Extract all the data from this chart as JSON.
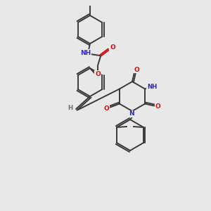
{
  "background_color": "#e8e8e8",
  "bond_color": "#3a3a3a",
  "atom_colors": {
    "N": "#2828cc",
    "O": "#cc1111",
    "H": "#707070",
    "C": "#3a3a3a"
  },
  "figsize": [
    3.0,
    3.0
  ],
  "dpi": 100
}
